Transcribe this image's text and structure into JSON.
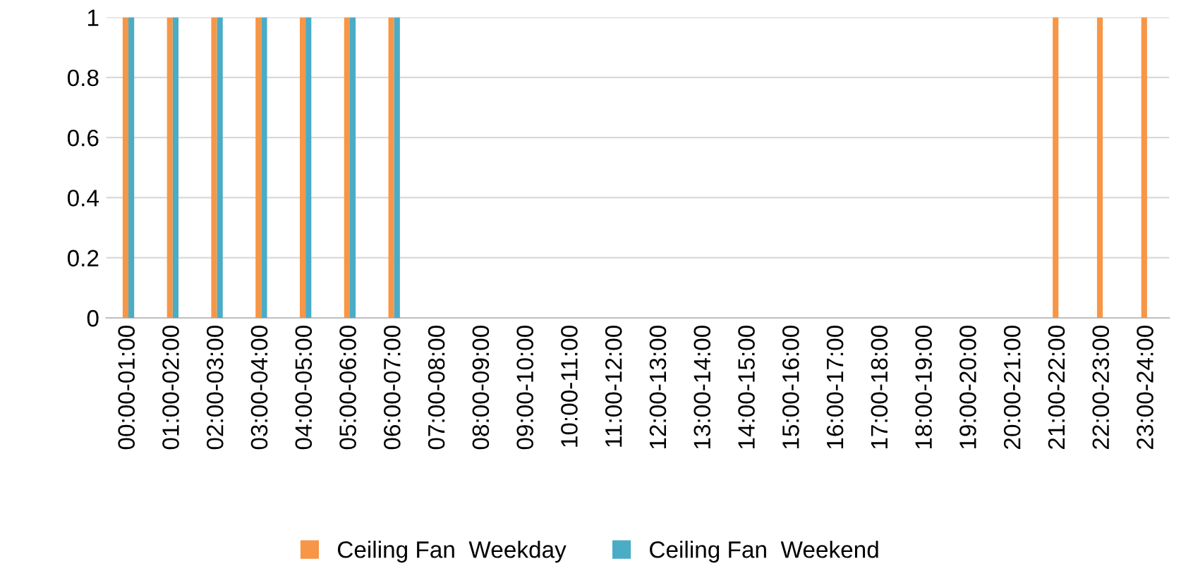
{
  "chart_data": {
    "type": "bar",
    "categories": [
      "00:00-01:00",
      "01:00-02:00",
      "02:00-03:00",
      "03:00-04:00",
      "04:00-05:00",
      "05:00-06:00",
      "06:00-07:00",
      "07:00-08:00",
      "08:00-09:00",
      "09:00-10:00",
      "10:00-11:00",
      "11:00-12:00",
      "12:00-13:00",
      "13:00-14:00",
      "14:00-15:00",
      "15:00-16:00",
      "16:00-17:00",
      "17:00-18:00",
      "18:00-19:00",
      "19:00-20:00",
      "20:00-21:00",
      "21:00-22:00",
      "22:00-23:00",
      "23:00-24:00"
    ],
    "series": [
      {
        "name": "Ceiling Fan  Weekday",
        "color": "#f79646",
        "values": [
          1,
          1,
          1,
          1,
          1,
          1,
          1,
          0,
          0,
          0,
          0,
          0,
          0,
          0,
          0,
          0,
          0,
          0,
          0,
          0,
          0,
          1,
          1,
          1
        ]
      },
      {
        "name": "Ceiling Fan  Weekend",
        "color": "#4bacc6",
        "values": [
          1,
          1,
          1,
          1,
          1,
          1,
          1,
          0,
          0,
          0,
          0,
          0,
          0,
          0,
          0,
          0,
          0,
          0,
          0,
          0,
          0,
          0,
          0,
          0
        ]
      }
    ],
    "ylim": [
      0,
      1
    ],
    "yticks": [
      0,
      0.2,
      0.4,
      0.6,
      0.8,
      1
    ],
    "grid": "y",
    "legend": "bottom"
  }
}
